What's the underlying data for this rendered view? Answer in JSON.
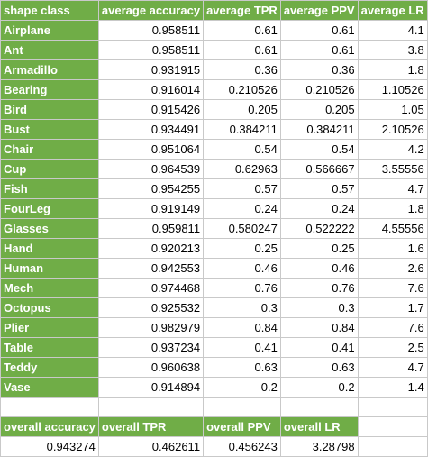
{
  "colors": {
    "header_green": "#70ad47",
    "header_text": "#ffffff",
    "gridline": "#c9c9c9"
  },
  "table": {
    "headers": [
      "shape class",
      "average accuracy",
      "average TPR",
      "average PPV",
      "average LR"
    ],
    "rows": [
      [
        "Airplane",
        "0.958511",
        "0.61",
        "0.61",
        "4.1"
      ],
      [
        "Ant",
        "0.958511",
        "0.61",
        "0.61",
        "3.8"
      ],
      [
        "Armadillo",
        "0.931915",
        "0.36",
        "0.36",
        "1.8"
      ],
      [
        "Bearing",
        "0.916014",
        "0.210526",
        "0.210526",
        "1.10526"
      ],
      [
        "Bird",
        "0.915426",
        "0.205",
        "0.205",
        "1.05"
      ],
      [
        "Bust",
        "0.934491",
        "0.384211",
        "0.384211",
        "2.10526"
      ],
      [
        "Chair",
        "0.951064",
        "0.54",
        "0.54",
        "4.2"
      ],
      [
        "Cup",
        "0.964539",
        "0.62963",
        "0.566667",
        "3.55556"
      ],
      [
        "Fish",
        "0.954255",
        "0.57",
        "0.57",
        "4.7"
      ],
      [
        "FourLeg",
        "0.919149",
        "0.24",
        "0.24",
        "1.8"
      ],
      [
        "Glasses",
        "0.959811",
        "0.580247",
        "0.522222",
        "4.55556"
      ],
      [
        "Hand",
        "0.920213",
        "0.25",
        "0.25",
        "1.6"
      ],
      [
        "Human",
        "0.942553",
        "0.46",
        "0.46",
        "2.6"
      ],
      [
        "Mech",
        "0.974468",
        "0.76",
        "0.76",
        "7.6"
      ],
      [
        "Octopus",
        "0.925532",
        "0.3",
        "0.3",
        "1.7"
      ],
      [
        "Plier",
        "0.982979",
        "0.84",
        "0.84",
        "7.6"
      ],
      [
        "Table",
        "0.937234",
        "0.41",
        "0.41",
        "2.5"
      ],
      [
        "Teddy",
        "0.960638",
        "0.63",
        "0.63",
        "4.7"
      ],
      [
        "Vase",
        "0.914894",
        "0.2",
        "0.2",
        "1.4"
      ]
    ]
  },
  "summary": {
    "headers": [
      "overall accuracy",
      "overall TPR",
      "overall PPV",
      "overall LR"
    ],
    "values": [
      "0.943274",
      "0.462611",
      "0.456243",
      "3.28798"
    ]
  }
}
